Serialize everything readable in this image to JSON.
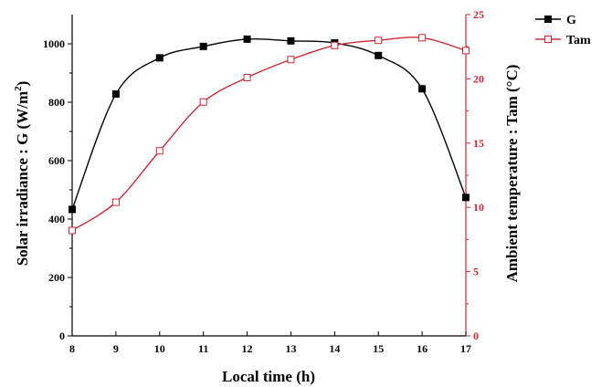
{
  "chart_data": {
    "type": "line",
    "x": [
      8,
      9,
      10,
      11,
      12,
      13,
      14,
      15,
      16,
      17
    ],
    "xlabel": "Local time (h)",
    "xlim": [
      8,
      17
    ],
    "x_ticks": [
      "8",
      "9",
      "10",
      "11",
      "12",
      "13",
      "14",
      "15",
      "16",
      "17"
    ],
    "left_axis": {
      "label_parts": {
        "prefix": "Solar irradiance : G (W/m",
        "sup": "2",
        "suffix": ")"
      },
      "ylim": [
        0,
        1100
      ],
      "ticks": [
        "0",
        "200",
        "400",
        "600",
        "800",
        "1000"
      ],
      "color": "#000000"
    },
    "right_axis": {
      "label": "Ambient temperature : Tam (°C)",
      "ylim": [
        0,
        25
      ],
      "ticks": [
        "0",
        "5",
        "10",
        "15",
        "20",
        "25"
      ],
      "color": "#cc2936"
    },
    "series": [
      {
        "name": "G",
        "axis": "left",
        "color": "#000000",
        "marker": "filled-square",
        "values": [
          433,
          828,
          952,
          991,
          1016,
          1010,
          1003,
          960,
          846,
          474
        ]
      },
      {
        "name": "Tam",
        "axis": "right",
        "color": "#cc2936",
        "marker": "open-square",
        "values": [
          8.2,
          10.4,
          14.4,
          18.2,
          20.1,
          21.5,
          22.6,
          23.0,
          23.2,
          22.2
        ]
      }
    ],
    "grid": false,
    "legend_position": "top-right"
  }
}
